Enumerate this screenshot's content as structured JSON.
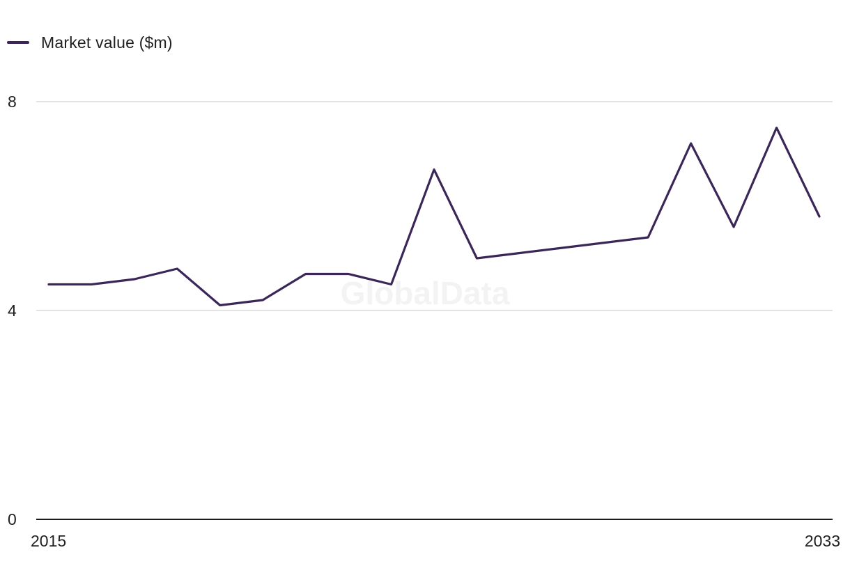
{
  "legend": {
    "label": "Market value ($m)"
  },
  "watermark": "GlobalData",
  "chart_data": {
    "type": "line",
    "x": [
      2015,
      2016,
      2017,
      2018,
      2019,
      2020,
      2021,
      2022,
      2023,
      2024,
      2025,
      2026,
      2027,
      2028,
      2029,
      2030,
      2031,
      2032,
      2033
    ],
    "series": [
      {
        "name": "Market value ($m)",
        "color": "#3a2657",
        "values": [
          4.5,
          4.5,
          4.6,
          4.8,
          4.1,
          4.2,
          4.7,
          4.7,
          4.5,
          6.7,
          5.0,
          5.1,
          5.2,
          5.3,
          5.4,
          7.2,
          5.6,
          7.5,
          5.8
        ]
      }
    ],
    "x_tick_labels": [
      "2015",
      "2033"
    ],
    "y_ticks": [
      0,
      4,
      8
    ],
    "y_tick_labels": [
      "0",
      "4",
      "8"
    ],
    "ylim": [
      0,
      8
    ],
    "xlim": [
      2015,
      2033
    ],
    "grid": true,
    "legend_position": "top-left",
    "title": "",
    "xlabel": "",
    "ylabel": "",
    "colors": {
      "line": "#3a2657",
      "grid": "#d4d4d4",
      "axis": "#1a1a1a"
    }
  }
}
